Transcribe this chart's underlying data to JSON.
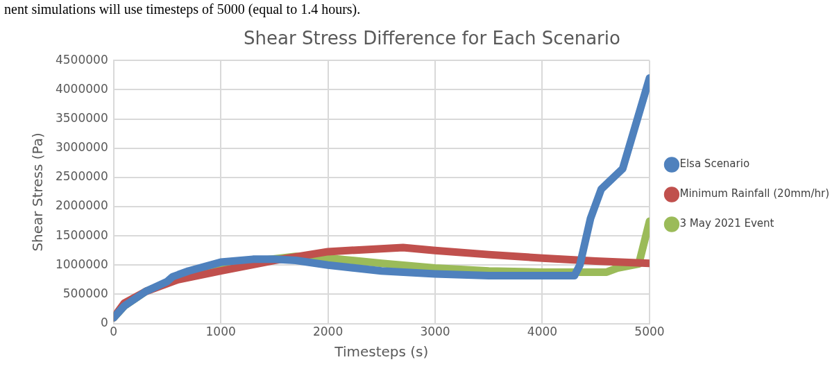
{
  "chart_data": {
    "type": "line",
    "title": "Shear Stress Difference for Each Scenario",
    "xlabel": "Timesteps (s)",
    "ylabel": "Shear Stress (Pa)",
    "annotations": [
      "nent simulations will use timesteps of 5000 (equal to 1.4 hours)."
    ],
    "xlim": [
      0,
      5000
    ],
    "xticks": [
      0,
      1000,
      2000,
      3000,
      4000,
      5000
    ],
    "ylim": [
      0,
      4500000
    ],
    "yticks": [
      0,
      500000,
      1000000,
      1500000,
      2000000,
      2500000,
      3000000,
      3500000,
      4000000,
      4500000
    ],
    "grid": true,
    "legend": "right",
    "marker": "none",
    "line_style": "solid",
    "series": [
      {
        "name": "Elsa Scenario",
        "color": "#4f81bd",
        "x": [
          0,
          100,
          300,
          500,
          550,
          700,
          1000,
          1300,
          1500,
          1700,
          2000,
          2500,
          3000,
          3500,
          4000,
          4300,
          4350,
          4450,
          4550,
          4750,
          5000
        ],
        "values": [
          100000,
          300000,
          550000,
          720000,
          800000,
          900000,
          1050000,
          1100000,
          1100000,
          1080000,
          1000000,
          900000,
          850000,
          820000,
          820000,
          820000,
          1000000,
          1800000,
          2300000,
          2650000,
          4200000
        ]
      },
      {
        "name": "Minimum Rainfall (20mm/hr)",
        "color": "#c0504d",
        "x": [
          0,
          100,
          300,
          600,
          1000,
          1500,
          2000,
          2700,
          3000,
          3500,
          4000,
          4500,
          5000
        ],
        "values": [
          100000,
          350000,
          550000,
          750000,
          900000,
          1080000,
          1230000,
          1300000,
          1250000,
          1180000,
          1120000,
          1070000,
          1030000
        ]
      },
      {
        "name": "3 May 2021 Event",
        "color": "#9bbb59",
        "x": [
          0,
          100,
          300,
          500,
          600,
          1000,
          1700,
          2000,
          2500,
          3000,
          3500,
          4000,
          4600,
          4700,
          4900,
          5000
        ],
        "values": [
          100000,
          300000,
          550000,
          700000,
          820000,
          1000000,
          1150000,
          1120000,
          1030000,
          950000,
          900000,
          880000,
          880000,
          950000,
          1020000,
          1750000
        ]
      }
    ]
  }
}
